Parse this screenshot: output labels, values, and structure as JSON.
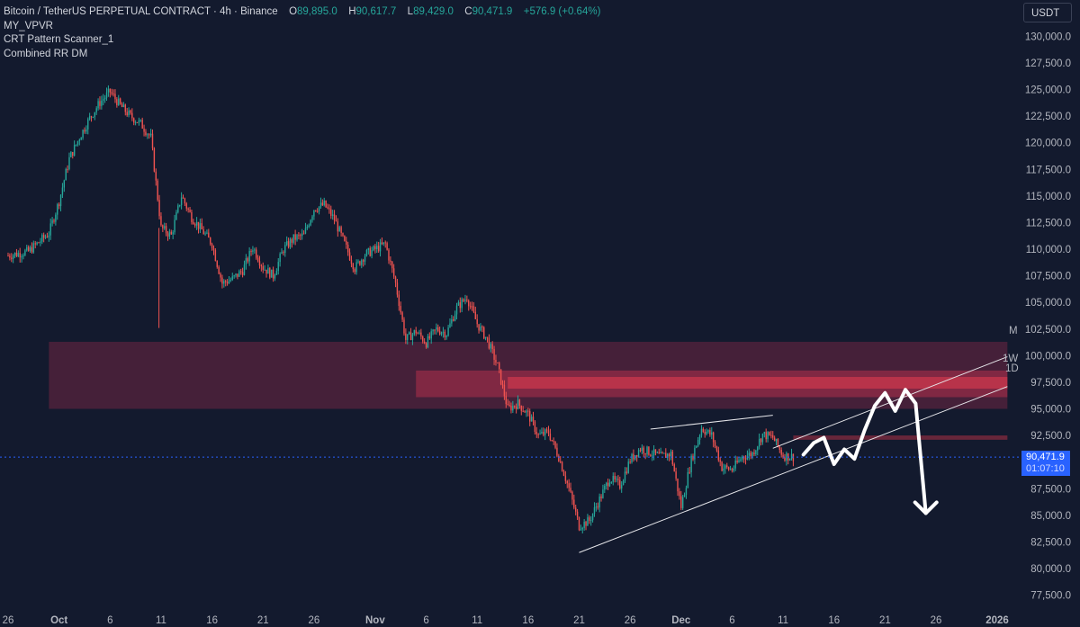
{
  "legend": {
    "symbol": "Bitcoin / TetherUS PERPETUAL CONTRACT · 4h · Binance",
    "open_label": "O",
    "open": "89,895.0",
    "high_label": "H",
    "high": "90,617.7",
    "low_label": "L",
    "low": "89,429.0",
    "close_label": "C",
    "close": "90,471.9",
    "change": "+576.9 (+0.64%)",
    "indicators": [
      "MY_VPVR",
      "CRT Pattern Scanner_1",
      "Combined RR DM"
    ]
  },
  "currency_button": "USDT",
  "price_tag": {
    "price": "90,471.9",
    "countdown": "01:07:10"
  },
  "zone_labels": {
    "m": "M",
    "w": "1W",
    "d": "1D"
  },
  "colors": {
    "background": "#131a2e",
    "up": "#26a69a",
    "down": "#ef5350",
    "last_price": "#2962ff"
  },
  "chart_data": {
    "type": "candlestick",
    "title": "Bitcoin / TetherUS PERPETUAL CONTRACT · 4h · Binance",
    "y_axis": {
      "ticks": [
        "130,000.0",
        "127,500.0",
        "125,000.0",
        "122,500.0",
        "120,000.0",
        "117,500.0",
        "115,000.0",
        "112,500.0",
        "110,000.0",
        "107,500.0",
        "105,000.0",
        "102,500.0",
        "100,000.0",
        "97,500.0",
        "95,000.0",
        "92,500.0",
        "87,500.0",
        "85,000.0",
        "82,500.0",
        "80,000.0",
        "77,500.0"
      ],
      "range": [
        76500,
        131000
      ]
    },
    "x_axis": {
      "ticks": [
        {
          "date": "2025-09-26",
          "label": "26"
        },
        {
          "date": "2025-10-01",
          "label": "Oct"
        },
        {
          "date": "2025-10-06",
          "label": "6"
        },
        {
          "date": "2025-10-11",
          "label": "11"
        },
        {
          "date": "2025-10-16",
          "label": "16"
        },
        {
          "date": "2025-10-21",
          "label": "21"
        },
        {
          "date": "2025-10-26",
          "label": "26"
        },
        {
          "date": "2025-11-01",
          "label": "Nov"
        },
        {
          "date": "2025-11-06",
          "label": "6"
        },
        {
          "date": "2025-11-11",
          "label": "11"
        },
        {
          "date": "2025-11-16",
          "label": "16"
        },
        {
          "date": "2025-11-21",
          "label": "21"
        },
        {
          "date": "2025-11-26",
          "label": "26"
        },
        {
          "date": "2025-12-01",
          "label": "Dec"
        },
        {
          "date": "2025-12-06",
          "label": "6"
        },
        {
          "date": "2025-12-11",
          "label": "11"
        },
        {
          "date": "2025-12-16",
          "label": "16"
        },
        {
          "date": "2025-12-21",
          "label": "21"
        },
        {
          "date": "2025-12-26",
          "label": "26"
        },
        {
          "date": "2026-01-01",
          "label": "2026"
        }
      ]
    },
    "close_path": [
      [
        "2025-09-26",
        109400
      ],
      [
        "2025-09-28",
        109800
      ],
      [
        "2025-09-30",
        111500
      ],
      [
        "2025-10-01",
        114500
      ],
      [
        "2025-10-02",
        118500
      ],
      [
        "2025-10-03",
        120500
      ],
      [
        "2025-10-04",
        122300
      ],
      [
        "2025-10-05",
        123800
      ],
      [
        "2025-10-06",
        124800
      ],
      [
        "2025-10-07",
        123500
      ],
      [
        "2025-10-08",
        122500
      ],
      [
        "2025-10-09",
        121800
      ],
      [
        "2025-10-10",
        120500
      ],
      [
        "2025-10-11",
        112000
      ],
      [
        "2025-10-12",
        111300
      ],
      [
        "2025-10-13",
        115000
      ],
      [
        "2025-10-14",
        113000
      ],
      [
        "2025-10-15",
        111800
      ],
      [
        "2025-10-16",
        110500
      ],
      [
        "2025-10-17",
        106800
      ],
      [
        "2025-10-18",
        107200
      ],
      [
        "2025-10-19",
        108000
      ],
      [
        "2025-10-20",
        110200
      ],
      [
        "2025-10-21",
        108300
      ],
      [
        "2025-10-22",
        107500
      ],
      [
        "2025-10-23",
        110000
      ],
      [
        "2025-10-24",
        111000
      ],
      [
        "2025-10-25",
        111300
      ],
      [
        "2025-10-26",
        113800
      ],
      [
        "2025-10-27",
        114200
      ],
      [
        "2025-10-28",
        112800
      ],
      [
        "2025-10-29",
        110500
      ],
      [
        "2025-10-30",
        108200
      ],
      [
        "2025-10-31",
        109500
      ],
      [
        "2025-11-01",
        110000
      ],
      [
        "2025-11-02",
        110500
      ],
      [
        "2025-11-03",
        106800
      ],
      [
        "2025-11-04",
        101500
      ],
      [
        "2025-11-05",
        102300
      ],
      [
        "2025-11-06",
        101200
      ],
      [
        "2025-11-07",
        102500
      ],
      [
        "2025-11-08",
        102100
      ],
      [
        "2025-11-09",
        104500
      ],
      [
        "2025-11-10",
        105500
      ],
      [
        "2025-11-11",
        103000
      ],
      [
        "2025-11-12",
        101500
      ],
      [
        "2025-11-13",
        99000
      ],
      [
        "2025-11-14",
        95000
      ],
      [
        "2025-11-15",
        95500
      ],
      [
        "2025-11-16",
        94500
      ],
      [
        "2025-11-17",
        92500
      ],
      [
        "2025-11-18",
        92800
      ],
      [
        "2025-11-19",
        90500
      ],
      [
        "2025-11-20",
        87500
      ],
      [
        "2025-11-21",
        84000
      ],
      [
        "2025-11-22",
        84500
      ],
      [
        "2025-11-23",
        86500
      ],
      [
        "2025-11-24",
        88500
      ],
      [
        "2025-11-25",
        87800
      ],
      [
        "2025-11-26",
        90200
      ],
      [
        "2025-11-27",
        91300
      ],
      [
        "2025-11-28",
        90900
      ],
      [
        "2025-11-29",
        90500
      ],
      [
        "2025-11-30",
        90800
      ],
      [
        "2025-12-01",
        85800
      ],
      [
        "2025-12-02",
        90200
      ],
      [
        "2025-12-03",
        93200
      ],
      [
        "2025-12-04",
        92500
      ],
      [
        "2025-12-05",
        89500
      ],
      [
        "2025-12-06",
        89300
      ],
      [
        "2025-12-07",
        90500
      ],
      [
        "2025-12-08",
        90800
      ],
      [
        "2025-12-09",
        92600
      ],
      [
        "2025-12-10",
        92300
      ],
      [
        "2025-12-11",
        90600
      ],
      [
        "2025-12-12",
        90500
      ]
    ],
    "zones": [
      {
        "name": "M",
        "from": "2025-09-30",
        "to": "2026-01-02",
        "low": 95000,
        "high": 101300
      },
      {
        "name": "1W",
        "from": "2025-11-05",
        "to": "2026-01-02",
        "low": 96100,
        "high": 98600
      },
      {
        "name": "1D",
        "from": "2025-11-14",
        "to": "2026-01-02",
        "low": 96900,
        "high": 98000
      },
      {
        "name": "",
        "from": "2025-12-12",
        "to": "2026-01-02",
        "low": 92100,
        "high": 92500
      }
    ],
    "wedge_lines": [
      {
        "from": [
          "2025-11-28",
          93100
        ],
        "to": [
          "2025-12-10",
          94400
        ]
      },
      {
        "from": [
          "2025-11-21",
          81500
        ],
        "to": [
          "2026-01-02",
          97100
        ]
      },
      {
        "from": [
          "2025-12-10",
          91300
        ],
        "to": [
          "2026-01-02",
          99900
        ]
      }
    ],
    "projection": [
      [
        "2025-12-13",
        90700
      ],
      [
        "2025-12-14",
        91800
      ],
      [
        "2025-12-15",
        92300
      ],
      [
        "2025-12-16",
        89800
      ],
      [
        "2025-12-17",
        91200
      ],
      [
        "2025-12-18",
        90300
      ],
      [
        "2025-12-19",
        93000
      ],
      [
        "2025-12-20",
        95300
      ],
      [
        "2025-12-21",
        96500
      ],
      [
        "2025-12-22",
        94800
      ],
      [
        "2025-12-23",
        96800
      ],
      [
        "2025-12-24",
        95500
      ],
      [
        "2025-12-25",
        85200
      ]
    ],
    "last_price": 90471.9
  }
}
